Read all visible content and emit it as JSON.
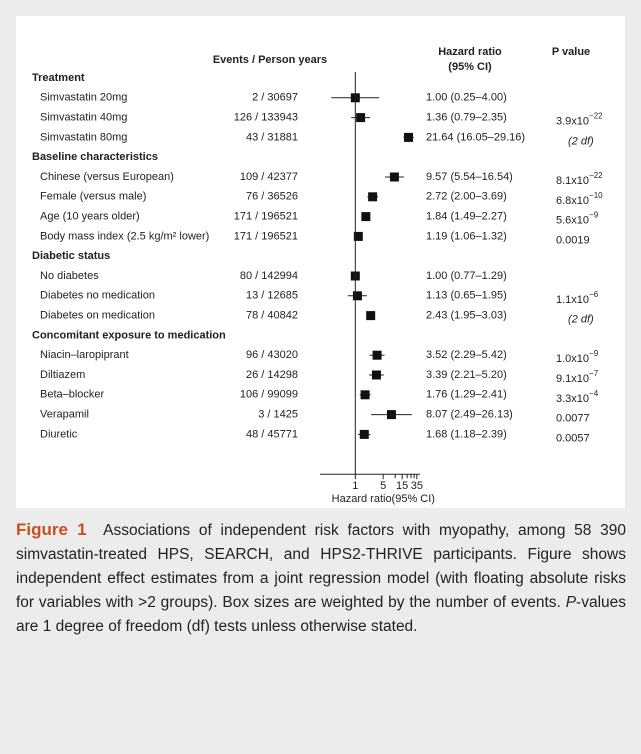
{
  "figure": {
    "header": {
      "events": "Events / Person years",
      "hr": "Hazard ratio",
      "hr_sub": "(95% CI)",
      "p": "P value"
    },
    "xaxis": {
      "title": "Hazard ratio(95% CI)",
      "scale": "log",
      "xlim": [
        0.13,
        42
      ],
      "xticks": [
        1,
        5,
        15,
        35
      ],
      "xminor_ticks": [
        10,
        20,
        25,
        30
      ]
    },
    "groups": [
      {
        "title": "Treatment",
        "rows": [
          {
            "label": "Simvastatin 20mg",
            "events": "2 / 30697",
            "hr": 1.0,
            "lo": 0.25,
            "hi": 4.0,
            "hr_label": "1.00 (0.25–4.00)"
          },
          {
            "label": "Simvastatin 40mg",
            "events": "126 / 133943",
            "hr": 1.36,
            "lo": 0.79,
            "hi": 2.35,
            "hr_label": "1.36 (0.79–2.35)",
            "p": "3.9x10",
            "p_exp": "−22"
          },
          {
            "label": "Simvastatin 80mg",
            "events": "43 / 31881",
            "hr": 21.64,
            "lo": 16.05,
            "hi": 29.16,
            "hr_label": "21.64 (16.05–29.16)",
            "p_note": "(2 df)"
          }
        ]
      },
      {
        "title": "Baseline characteristics",
        "rows": [
          {
            "label": "Chinese (versus European)",
            "events": "109 / 42377",
            "hr": 9.57,
            "lo": 5.54,
            "hi": 16.54,
            "hr_label": "9.57 (5.54–16.54)",
            "p": "8.1x10",
            "p_exp": "−22"
          },
          {
            "label": "Female (versus male)",
            "events": "76 / 36526",
            "hr": 2.72,
            "lo": 2.0,
            "hi": 3.69,
            "hr_label": "2.72 (2.00–3.69)",
            "p": "6.8x10",
            "p_exp": "−10"
          },
          {
            "label": "Age (10 years older)",
            "events": "171 / 196521",
            "hr": 1.84,
            "lo": 1.49,
            "hi": 2.27,
            "hr_label": "1.84 (1.49–2.27)",
            "p": "5.6x10",
            "p_exp": "−9"
          },
          {
            "label": "Body mass index (2.5 kg/m² lower)",
            "events": "171 / 196521",
            "hr": 1.19,
            "lo": 1.06,
            "hi": 1.32,
            "hr_label": "1.19 (1.06–1.32)",
            "p": "0.0019"
          }
        ]
      },
      {
        "title": "Diabetic status",
        "rows": [
          {
            "label": "No diabetes",
            "events": "80 / 142994",
            "hr": 1.0,
            "lo": 0.77,
            "hi": 1.29,
            "hr_label": "1.00 (0.77–1.29)"
          },
          {
            "label": "Diabetes no medication",
            "events": "13 / 12685",
            "hr": 1.13,
            "lo": 0.65,
            "hi": 1.95,
            "hr_label": "1.13 (0.65–1.95)",
            "p": "1.1x10",
            "p_exp": "−6"
          },
          {
            "label": "Diabetes on medication",
            "events": "78 / 40842",
            "hr": 2.43,
            "lo": 1.95,
            "hi": 3.03,
            "hr_label": "2.43 (1.95–3.03)",
            "p_note": "(2 df)"
          }
        ]
      },
      {
        "title": "Concomitant exposure to medication",
        "rows": [
          {
            "label": "Niacin–laropiprant",
            "events": "96 / 43020",
            "hr": 3.52,
            "lo": 2.29,
            "hi": 5.42,
            "hr_label": "3.52 (2.29–5.42)",
            "p": "1.0x10",
            "p_exp": "−9"
          },
          {
            "label": "Diltiazem",
            "events": "26 / 14298",
            "hr": 3.39,
            "lo": 2.21,
            "hi": 5.2,
            "hr_label": "3.39 (2.21–5.20)",
            "p": "9.1x10",
            "p_exp": "−7"
          },
          {
            "label": "Beta–blocker",
            "events": "106 / 99099",
            "hr": 1.76,
            "lo": 1.29,
            "hi": 2.41,
            "hr_label": "1.76 (1.29–2.41)",
            "p": "3.3x10",
            "p_exp": "−4"
          },
          {
            "label": "Verapamil",
            "events": "3 / 1425",
            "hr": 8.07,
            "lo": 2.49,
            "hi": 26.13,
            "hr_label": "8.07 (2.49–26.13)",
            "p": "0.0077"
          },
          {
            "label": "Diuretic",
            "events": "48 / 45771",
            "hr": 1.68,
            "lo": 1.18,
            "hi": 2.39,
            "hr_label": "1.68 (1.18–2.39)",
            "p": "0.0057"
          }
        ]
      }
    ],
    "caption": {
      "label": "Figure 1",
      "text_before": "Associations of independent risk factors with myopathy, among 58 390 simvastatin-treated HPS, SEARCH, and HPS2-THRIVE participants. Figure shows independent effect estimates from a joint regression model (with floating absolute risks for variables with >2 groups). Box sizes are weighted by the number of events. ",
      "text_italic": "P",
      "text_after": "-values are 1 degree of freedom (df) tests unless otherwise stated."
    }
  }
}
